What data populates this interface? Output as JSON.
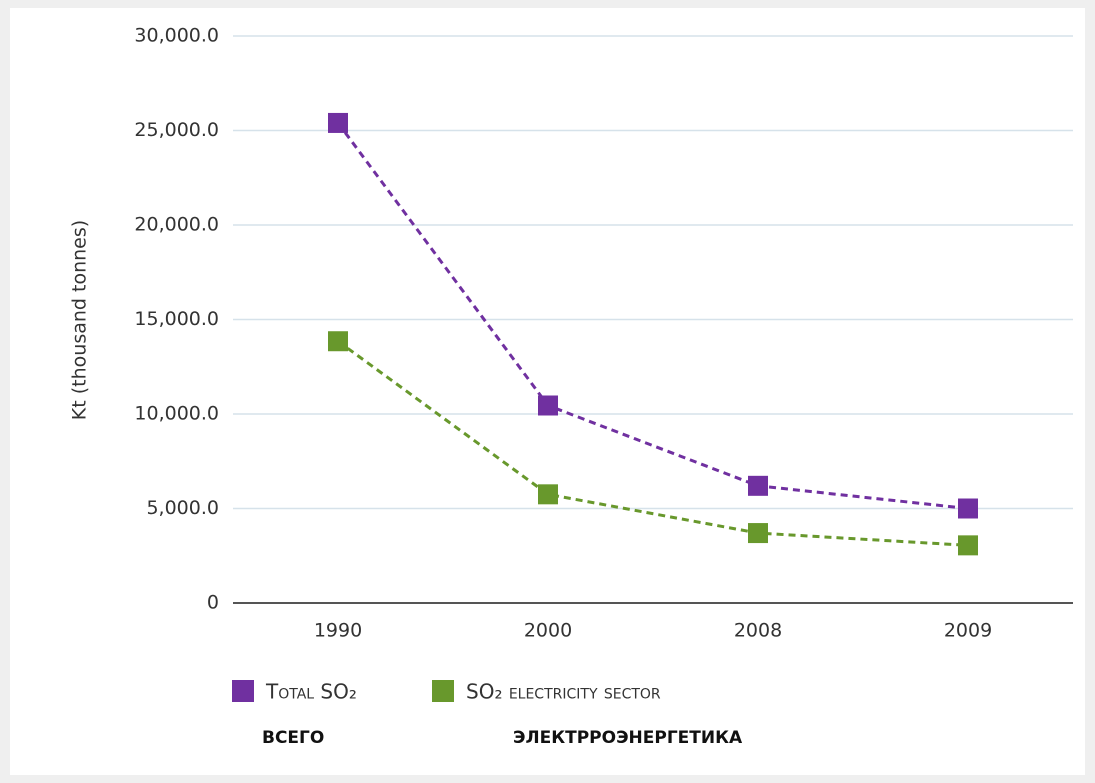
{
  "chart_data": {
    "type": "line",
    "y_label": "Kt (thousand tonnes)",
    "categories": [
      "1990",
      "2000",
      "2008",
      "2009"
    ],
    "series": [
      {
        "name": "Total SO₂",
        "color": "#7030a0",
        "values": [
          25400,
          10450,
          6200,
          5000
        ]
      },
      {
        "name": "SO₂ electricity sector",
        "color": "#68982c",
        "values": [
          13850,
          5750,
          3700,
          3050
        ]
      }
    ],
    "annotations": [
      "ВСЕГО",
      "ЭЛЕКТРРОЭНЕРГЕТИКА"
    ],
    "ylim": [
      0,
      30000
    ],
    "yticks": [
      0,
      {
        "value": 5000,
        "label": "5,000.0"
      },
      {
        "value": 10000,
        "label": "10,000.0"
      },
      {
        "value": 15000,
        "label": "15,000.0"
      },
      {
        "value": 20000,
        "label": "20,000.0"
      },
      {
        "value": 25000,
        "label": "25,000.0"
      },
      {
        "value": 30000,
        "label": "30,000.0"
      }
    ],
    "grid": true,
    "line_style": "dashed",
    "legend": "bottom"
  }
}
